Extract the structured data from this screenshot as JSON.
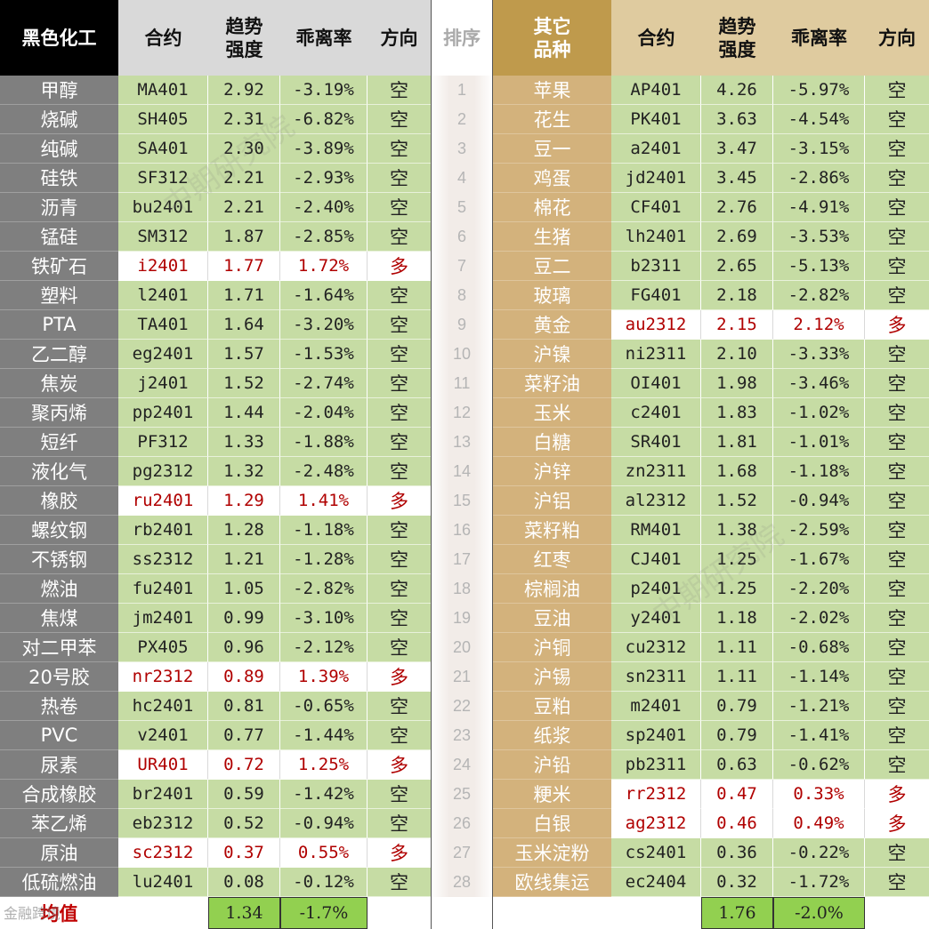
{
  "left_header": {
    "category": "黑色化工",
    "contract": "合约",
    "strength": "趋势\n强度",
    "deviation": "乖离率",
    "direction": "方向"
  },
  "rank_header": "排序",
  "right_header": {
    "category": "其它\n品种",
    "contract": "合约",
    "strength": "趋势\n强度",
    "deviation": "乖离率",
    "direction": "方向"
  },
  "left_rows": [
    [
      "甲醇",
      "MA401",
      "2.92",
      "-3.19%",
      "空"
    ],
    [
      "烧碱",
      "SH405",
      "2.31",
      "-6.82%",
      "空"
    ],
    [
      "纯碱",
      "SA401",
      "2.30",
      "-3.89%",
      "空"
    ],
    [
      "硅铁",
      "SF312",
      "2.21",
      "-2.93%",
      "空"
    ],
    [
      "沥青",
      "bu2401",
      "2.21",
      "-2.40%",
      "空"
    ],
    [
      "锰硅",
      "SM312",
      "1.87",
      "-2.85%",
      "空"
    ],
    [
      "铁矿石",
      "i2401",
      "1.77",
      "1.72%",
      "多"
    ],
    [
      "塑料",
      "l2401",
      "1.71",
      "-1.64%",
      "空"
    ],
    [
      "PTA",
      "TA401",
      "1.64",
      "-3.20%",
      "空"
    ],
    [
      "乙二醇",
      "eg2401",
      "1.57",
      "-1.53%",
      "空"
    ],
    [
      "焦炭",
      "j2401",
      "1.52",
      "-2.74%",
      "空"
    ],
    [
      "聚丙烯",
      "pp2401",
      "1.44",
      "-2.04%",
      "空"
    ],
    [
      "短纤",
      "PF312",
      "1.33",
      "-1.88%",
      "空"
    ],
    [
      "液化气",
      "pg2312",
      "1.32",
      "-2.48%",
      "空"
    ],
    [
      "橡胶",
      "ru2401",
      "1.29",
      "1.41%",
      "多"
    ],
    [
      "螺纹钢",
      "rb2401",
      "1.28",
      "-1.18%",
      "空"
    ],
    [
      "不锈钢",
      "ss2312",
      "1.21",
      "-1.28%",
      "空"
    ],
    [
      "燃油",
      "fu2401",
      "1.05",
      "-2.82%",
      "空"
    ],
    [
      "焦煤",
      "jm2401",
      "0.99",
      "-3.10%",
      "空"
    ],
    [
      "对二甲苯",
      "PX405",
      "0.96",
      "-2.12%",
      "空"
    ],
    [
      "20号胶",
      "nr2312",
      "0.89",
      "1.39%",
      "多"
    ],
    [
      "热卷",
      "hc2401",
      "0.81",
      "-0.65%",
      "空"
    ],
    [
      "PVC",
      "v2401",
      "0.77",
      "-1.44%",
      "空"
    ],
    [
      "尿素",
      "UR401",
      "0.72",
      "1.25%",
      "多"
    ],
    [
      "合成橡胶",
      "br2401",
      "0.59",
      "-1.42%",
      "空"
    ],
    [
      "苯乙烯",
      "eb2312",
      "0.52",
      "-0.94%",
      "空"
    ],
    [
      "原油",
      "sc2312",
      "0.37",
      "0.55%",
      "多"
    ],
    [
      "低硫燃油",
      "lu2401",
      "0.08",
      "-0.12%",
      "空"
    ]
  ],
  "ranks": [
    "1",
    "2",
    "3",
    "4",
    "5",
    "6",
    "7",
    "8",
    "9",
    "10",
    "11",
    "12",
    "13",
    "14",
    "15",
    "16",
    "17",
    "18",
    "19",
    "20",
    "21",
    "22",
    "23",
    "24",
    "25",
    "26",
    "27",
    "28"
  ],
  "right_rows": [
    [
      "苹果",
      "AP401",
      "4.26",
      "-5.97%",
      "空"
    ],
    [
      "花生",
      "PK401",
      "3.63",
      "-4.54%",
      "空"
    ],
    [
      "豆一",
      "a2401",
      "3.47",
      "-3.15%",
      "空"
    ],
    [
      "鸡蛋",
      "jd2401",
      "3.45",
      "-2.86%",
      "空"
    ],
    [
      "棉花",
      "CF401",
      "2.76",
      "-4.91%",
      "空"
    ],
    [
      "生猪",
      "lh2401",
      "2.69",
      "-3.53%",
      "空"
    ],
    [
      "豆二",
      "b2311",
      "2.65",
      "-5.13%",
      "空"
    ],
    [
      "玻璃",
      "FG401",
      "2.18",
      "-2.82%",
      "空"
    ],
    [
      "黄金",
      "au2312",
      "2.15",
      "2.12%",
      "多"
    ],
    [
      "沪镍",
      "ni2311",
      "2.10",
      "-3.33%",
      "空"
    ],
    [
      "菜籽油",
      "OI401",
      "1.98",
      "-3.46%",
      "空"
    ],
    [
      "玉米",
      "c2401",
      "1.83",
      "-1.02%",
      "空"
    ],
    [
      "白糖",
      "SR401",
      "1.81",
      "-1.01%",
      "空"
    ],
    [
      "沪锌",
      "zn2311",
      "1.68",
      "-1.18%",
      "空"
    ],
    [
      "沪铝",
      "al2312",
      "1.52",
      "-0.94%",
      "空"
    ],
    [
      "菜籽粕",
      "RM401",
      "1.38",
      "-2.59%",
      "空"
    ],
    [
      "红枣",
      "CJ401",
      "1.25",
      "-1.67%",
      "空"
    ],
    [
      "棕榈油",
      "p2401",
      "1.25",
      "-2.20%",
      "空"
    ],
    [
      "豆油",
      "y2401",
      "1.18",
      "-2.02%",
      "空"
    ],
    [
      "沪铜",
      "cu2312",
      "1.11",
      "-0.68%",
      "空"
    ],
    [
      "沪锡",
      "sn2311",
      "1.11",
      "-1.14%",
      "空"
    ],
    [
      "豆粕",
      "m2401",
      "0.79",
      "-1.21%",
      "空"
    ],
    [
      "纸浆",
      "sp2401",
      "0.79",
      "-1.41%",
      "空"
    ],
    [
      "沪铅",
      "pb2311",
      "0.63",
      "-0.62%",
      "空"
    ],
    [
      "粳米",
      "rr2312",
      "0.47",
      "0.33%",
      "多"
    ],
    [
      "白银",
      "ag2312",
      "0.46",
      "0.49%",
      "多"
    ],
    [
      "玉米淀粉",
      "cs2401",
      "0.36",
      "-0.22%",
      "空"
    ],
    [
      "欧线集运",
      "ec2404",
      "0.32",
      "-1.72%",
      "空"
    ]
  ],
  "footer": {
    "label": "均值",
    "left_strength": "1.34",
    "left_deviation": "-1.7%",
    "right_strength": "1.76",
    "right_deviation": "-2.0%"
  },
  "watermark_text": "中期研究院",
  "logo_text": "金融跨境",
  "colors": {
    "left_header_bg": "#000000",
    "left_header_fg": "#ffffff",
    "gray_header_bg": "#d9d9d9",
    "left_name_bg": "#7f7f7f",
    "gold_header_bg": "#bf9a4c",
    "gold_header_fg": "#ffffff",
    "right_header_bg": "#dfcb9f",
    "right_name_bg": "#d3b27c",
    "row_green": "#c6dca4",
    "row_white": "#ffffff",
    "rank_bg": "#f2ece8",
    "footer_green": "#92d050",
    "footer_label": "#c00000",
    "up_red": "#b00000"
  }
}
